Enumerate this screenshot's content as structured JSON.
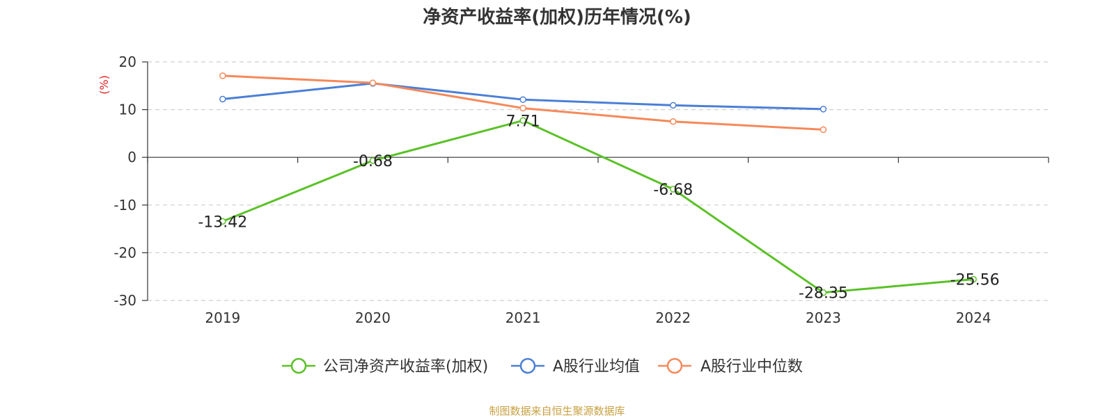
{
  "chart_data": {
    "type": "line",
    "title": "净资产收益率(加权)历年情况(%)",
    "ylabel": "(%)",
    "categories": [
      "2019",
      "2020",
      "2021",
      "2022",
      "2023",
      "2024"
    ],
    "ylim": [
      -30,
      20
    ],
    "yticks": [
      20,
      10,
      0,
      -10,
      -20,
      -30
    ],
    "grid": true,
    "legend_position": "bottom",
    "series": [
      {
        "name": "公司净资产收益率(加权)",
        "color": "#5ac127",
        "values": [
          -13.42,
          -0.68,
          7.71,
          -6.68,
          -28.35,
          -25.56
        ],
        "labels": [
          "-13.42",
          "-0.68",
          "7.71",
          "-6.68",
          "-28.35",
          "-25.56"
        ]
      },
      {
        "name": "A股行业均值",
        "color": "#4a7fd6",
        "values": [
          12.2,
          15.5,
          12.1,
          10.9,
          10.1,
          null
        ]
      },
      {
        "name": "A股行业中位数",
        "color": "#f5895a",
        "values": [
          17.1,
          15.6,
          10.3,
          7.5,
          5.8,
          null
        ]
      }
    ]
  },
  "source": "制图数据来自恒生聚源数据库",
  "colors": {
    "ylabel": "#e02020",
    "source": "#c8a040"
  }
}
